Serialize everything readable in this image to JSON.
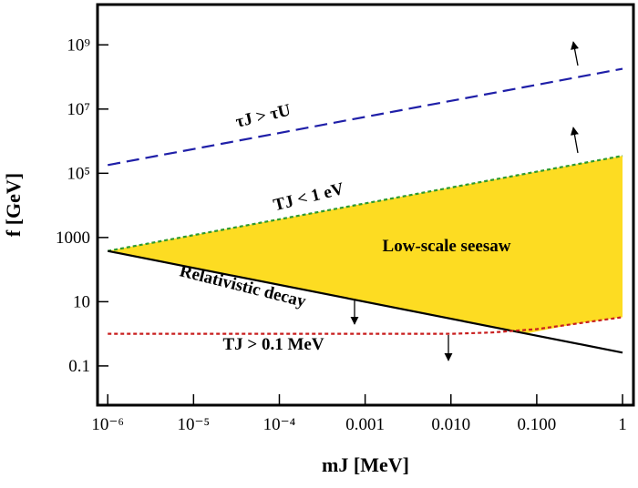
{
  "chart_data": {
    "type": "line",
    "x_label": "mJ [MeV]",
    "y_label": "f [GeV]",
    "xscale": "log",
    "yscale": "log",
    "xlim": [
      7.6e-07,
      1.34
    ],
    "ylim": [
      0.006,
      18000000000.0
    ],
    "xticks": [
      {
        "value": 1e-06,
        "label": "10⁻⁶"
      },
      {
        "value": 1e-05,
        "label": "10⁻⁵"
      },
      {
        "value": 0.0001,
        "label": "10⁻⁴"
      },
      0.001,
      {
        "value": 0.01,
        "label": "0.010"
      },
      {
        "value": 0.1,
        "label": "0.100"
      },
      1
    ],
    "yticks": [
      0.1,
      10,
      1000,
      {
        "value": 100000,
        "label": "10⁵"
      },
      {
        "value": 10000000,
        "label": "10⁷"
      },
      {
        "value": 1000000000,
        "label": "10⁹"
      }
    ],
    "region": {
      "name": "Low-scale seesaw",
      "color": "#fddc22",
      "x": [
        1e-06,
        1,
        1,
        0.3,
        0.08,
        1e-06
      ],
      "values": [
        380,
        350000,
        3.3,
        2.1,
        1.05,
        380
      ]
    },
    "series": [
      {
        "name": "τJ > τU",
        "color": "#1f1fa8",
        "dash": "dashed",
        "x": [
          1e-06,
          1
        ],
        "values": [
          180000,
          180000000
        ]
      },
      {
        "name": "TJ < 1 eV",
        "color": "#2e9a2e",
        "dash": "dotted",
        "x": [
          1e-06,
          1
        ],
        "values": [
          380,
          350000
        ]
      },
      {
        "name": "Relativistic decay",
        "color": "#000000",
        "dash": "solid",
        "x": [
          1e-06,
          1
        ],
        "values": [
          380,
          0.26
        ]
      },
      {
        "name": "TJ > 0.1 MeV",
        "color": "#c81e1e",
        "dash": "dotted",
        "x": [
          1e-06,
          0.01,
          0.03,
          0.1,
          0.3,
          1
        ],
        "values": [
          1,
          1,
          1.1,
          1.4,
          2.1,
          3.3
        ]
      }
    ]
  }
}
